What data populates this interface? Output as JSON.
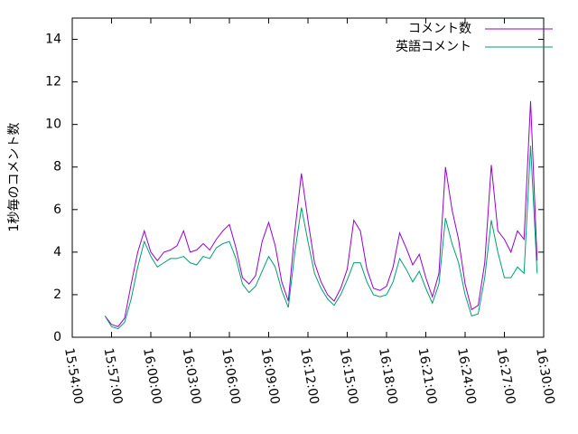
{
  "chart_data": {
    "type": "line",
    "ylabel": "1秒毎のコメント数",
    "legend": "top-right",
    "x": [
      "15:56:30",
      "15:57:00",
      "15:57:30",
      "15:58:00",
      "15:58:30",
      "15:59:00",
      "15:59:30",
      "16:00:00",
      "16:00:30",
      "16:01:00",
      "16:01:30",
      "16:02:00",
      "16:02:30",
      "16:03:00",
      "16:03:30",
      "16:04:00",
      "16:04:30",
      "16:05:00",
      "16:05:30",
      "16:06:00",
      "16:06:30",
      "16:07:00",
      "16:07:30",
      "16:08:00",
      "16:08:30",
      "16:09:00",
      "16:09:30",
      "16:10:00",
      "16:10:30",
      "16:11:00",
      "16:11:30",
      "16:12:00",
      "16:12:30",
      "16:13:00",
      "16:13:30",
      "16:14:00",
      "16:14:30",
      "16:15:00",
      "16:15:30",
      "16:16:00",
      "16:16:30",
      "16:17:00",
      "16:17:30",
      "16:18:00",
      "16:18:30",
      "16:19:00",
      "16:19:30",
      "16:20:00",
      "16:20:30",
      "16:21:00",
      "16:21:30",
      "16:22:00",
      "16:22:30",
      "16:23:00",
      "16:23:30",
      "16:24:00",
      "16:24:30",
      "16:25:00",
      "16:25:30",
      "16:26:00",
      "16:26:30",
      "16:27:00",
      "16:27:30",
      "16:28:00",
      "16:28:30",
      "16:29:00",
      "16:29:30"
    ],
    "series": [
      {
        "name": "コメント数",
        "color": "#9400d3",
        "values": [
          1.0,
          0.6,
          0.5,
          0.9,
          2.5,
          4.0,
          5.0,
          4.0,
          3.6,
          4.0,
          4.1,
          4.3,
          5.0,
          4.0,
          4.1,
          4.4,
          4.1,
          4.6,
          5.0,
          5.3,
          4.2,
          2.8,
          2.5,
          2.9,
          4.5,
          5.4,
          4.3,
          2.6,
          1.7,
          5.0,
          7.7,
          5.5,
          3.5,
          2.6,
          2.0,
          1.7,
          2.3,
          3.2,
          5.5,
          5.0,
          3.2,
          2.3,
          2.2,
          2.4,
          3.3,
          4.9,
          4.2,
          3.4,
          3.9,
          2.8,
          1.9,
          3.0,
          8.0,
          6.0,
          4.6,
          2.5,
          1.3,
          1.5,
          3.5,
          8.1,
          5.0,
          4.6,
          4.0,
          5.0,
          4.6,
          11.1,
          3.6
        ]
      },
      {
        "name": "英語コメント",
        "color": "#009e73",
        "values": [
          1.0,
          0.5,
          0.4,
          0.7,
          1.8,
          3.3,
          4.5,
          3.8,
          3.3,
          3.5,
          3.7,
          3.7,
          3.8,
          3.5,
          3.4,
          3.8,
          3.7,
          4.2,
          4.4,
          4.5,
          3.7,
          2.5,
          2.1,
          2.4,
          3.1,
          3.8,
          3.3,
          2.2,
          1.4,
          4.0,
          6.1,
          4.5,
          3.0,
          2.3,
          1.8,
          1.5,
          2.0,
          2.7,
          3.5,
          3.5,
          2.6,
          2.0,
          1.9,
          2.0,
          2.6,
          3.7,
          3.2,
          2.6,
          3.1,
          2.3,
          1.6,
          2.5,
          5.6,
          4.4,
          3.5,
          2.0,
          1.0,
          1.1,
          2.8,
          5.5,
          4.0,
          2.8,
          2.8,
          3.3,
          3.0,
          9.0,
          3.0
        ]
      }
    ],
    "xlim": [
      "15:54:00",
      "16:30:00"
    ],
    "xticks": [
      "15:54:00",
      "15:57:00",
      "16:00:00",
      "16:03:00",
      "16:06:00",
      "16:09:00",
      "16:12:00",
      "16:15:00",
      "16:18:00",
      "16:21:00",
      "16:24:00",
      "16:27:00",
      "16:30:00"
    ],
    "ylim": [
      0,
      15
    ],
    "yticks": [
      0,
      2,
      4,
      6,
      8,
      10,
      12,
      14
    ]
  }
}
